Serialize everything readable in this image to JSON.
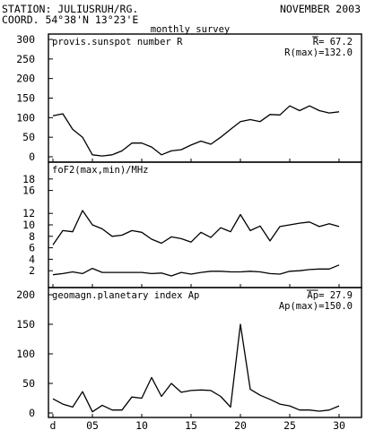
{
  "header": {
    "station_line": "STATION: JULIUSRUH/RG.",
    "coord_line": "COORD. 54°38'N 13°23'E",
    "month_label": "NOVEMBER 2003",
    "subtitle": "monthly survey"
  },
  "chart_data": [
    {
      "type": "line",
      "title": "provis.sunspot number R",
      "annotations": [
        "R= 67.2",
        "R(max)=132.0"
      ],
      "x": [
        1,
        2,
        3,
        4,
        5,
        6,
        7,
        8,
        9,
        10,
        11,
        12,
        13,
        14,
        15,
        16,
        17,
        18,
        19,
        20,
        21,
        22,
        23,
        24,
        25,
        26,
        27,
        28,
        29,
        30
      ],
      "series": [
        {
          "values": [
            105,
            110,
            70,
            50,
            5,
            2,
            5,
            15,
            35,
            35,
            25,
            5,
            15,
            18,
            30,
            40,
            32,
            50,
            70,
            90,
            95,
            90,
            108,
            107,
            130,
            118,
            130,
            118,
            112,
            115
          ]
        }
      ],
      "ylim": [
        0,
        300
      ],
      "yticks": [
        0,
        50,
        100,
        150,
        200,
        250,
        300
      ],
      "xtick_labels": [
        "d",
        "05",
        "10",
        "15",
        "20",
        "25",
        "30"
      ]
    },
    {
      "type": "line",
      "title": "foF2(max,min)/MHz",
      "x": [
        1,
        2,
        3,
        4,
        5,
        6,
        7,
        8,
        9,
        10,
        11,
        12,
        13,
        14,
        15,
        16,
        17,
        18,
        19,
        20,
        21,
        22,
        23,
        24,
        25,
        26,
        27,
        28,
        29,
        30
      ],
      "series": [
        {
          "values": [
            6.5,
            9,
            8.8,
            12.5,
            10,
            9.3,
            8,
            8.2,
            9,
            8.7,
            7.5,
            6.8,
            7.9,
            7.6,
            7,
            8.7,
            7.8,
            9.5,
            8.8,
            11.8,
            9,
            9.8,
            7.2,
            9.7,
            10,
            10.3,
            10.5,
            9.7,
            10.2,
            9.7
          ]
        },
        {
          "values": [
            1.3,
            1.5,
            1.8,
            1.5,
            2.4,
            1.7,
            1.7,
            1.7,
            1.7,
            1.7,
            1.5,
            1.6,
            1.1,
            1.7,
            1.4,
            1.7,
            1.9,
            1.9,
            1.8,
            1.8,
            1.9,
            1.8,
            1.5,
            1.4,
            1.9,
            2.0,
            2.2,
            2.3,
            2.3,
            3.0
          ]
        }
      ],
      "ylim": [
        0,
        20
      ],
      "yticks": [
        2,
        4,
        6,
        8,
        10,
        12,
        16,
        18
      ],
      "xtick_labels": [
        "d",
        "05",
        "10",
        "15",
        "20",
        "25",
        "30"
      ]
    },
    {
      "type": "line",
      "title": "geomagn.planetary index Ap",
      "annotations": [
        "Ap= 27.9",
        "Ap(max)=150.0"
      ],
      "x": [
        1,
        2,
        3,
        4,
        5,
        6,
        7,
        8,
        9,
        10,
        11,
        12,
        13,
        14,
        15,
        16,
        17,
        18,
        19,
        20,
        21,
        22,
        23,
        24,
        25,
        26,
        27,
        28,
        29,
        30
      ],
      "series": [
        {
          "values": [
            24,
            15,
            10,
            36,
            2,
            13,
            5,
            5,
            27,
            25,
            60,
            28,
            50,
            35,
            38,
            39,
            38,
            28,
            10,
            150,
            40,
            30,
            23,
            15,
            12,
            5,
            5,
            3,
            5,
            12
          ]
        }
      ],
      "ylim": [
        0,
        200
      ],
      "yticks": [
        0,
        50,
        100,
        150,
        200
      ],
      "xtick_labels": [
        "d",
        "05",
        "10",
        "15",
        "20",
        "25",
        "30"
      ]
    }
  ]
}
